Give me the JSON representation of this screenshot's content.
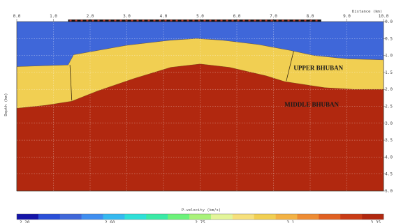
{
  "chart_data": {
    "type": "heatmap",
    "x_axis": {
      "label": "Distance (km)",
      "range": [
        0.0,
        10.0
      ],
      "ticks": [
        "0.0",
        "1.0",
        "2.0",
        "3.0",
        "4.0",
        "5.0",
        "6.0",
        "7.0",
        "8.0",
        "9.0",
        "10.0"
      ]
    },
    "y_axis": {
      "label": "Depth (km)",
      "range": [
        0.0,
        5.0
      ],
      "inverted": true,
      "ticks": [
        "0.0",
        "0.5",
        "1.0",
        "1.5",
        "2.0",
        "2.5",
        "3.0",
        "3.5",
        "4.0",
        "4.5",
        "5.0"
      ]
    },
    "grid": true,
    "layers": [
      {
        "color": "#3f67d9",
        "top_boundary": null
      },
      {
        "color": "#f1cf52",
        "top_boundary": [
          [
            0,
            1.33
          ],
          [
            1.4,
            1.28
          ],
          [
            1.55,
            0.98
          ],
          [
            3.0,
            0.7
          ],
          [
            4.2,
            0.55
          ],
          [
            4.9,
            0.5
          ],
          [
            5.6,
            0.55
          ],
          [
            6.6,
            0.68
          ],
          [
            7.2,
            0.8
          ],
          [
            7.45,
            0.85
          ],
          [
            8.1,
            1.0
          ],
          [
            9.0,
            1.1
          ],
          [
            10.0,
            1.13
          ]
        ]
      },
      {
        "color": "#b1280f",
        "top_boundary": [
          [
            0,
            2.56
          ],
          [
            0.8,
            2.47
          ],
          [
            1.5,
            2.35
          ],
          [
            2.2,
            2.05
          ],
          [
            3.2,
            1.68
          ],
          [
            4.2,
            1.35
          ],
          [
            5.0,
            1.25
          ],
          [
            5.8,
            1.35
          ],
          [
            6.8,
            1.6
          ],
          [
            7.3,
            1.77
          ],
          [
            8.4,
            1.95
          ],
          [
            9.2,
            2.0
          ],
          [
            10.0,
            2.0
          ]
        ]
      }
    ],
    "faults": [
      [
        [
          1.45,
          1.28
        ],
        [
          1.5,
          2.33
        ]
      ],
      [
        [
          7.35,
          1.75
        ],
        [
          7.55,
          0.87
        ]
      ]
    ],
    "annotations": [
      {
        "text": "UPPER BHUBAN",
        "x": 7.55,
        "y": 1.37
      },
      {
        "text": "MIDDLE BHUBAN",
        "x": 7.3,
        "y": 2.45
      }
    ],
    "colorbar": {
      "label": "P-velocity (km/s)",
      "range_text": [
        "2.20",
        "2.60",
        "2.75",
        "3.1",
        "3.35"
      ],
      "colors": [
        "#1515a8",
        "#2a4fd8",
        "#3f67d9",
        "#3f8ef0",
        "#35b9f0",
        "#2ee0d8",
        "#3aeaa6",
        "#6cf27a",
        "#a9f27a",
        "#e3f59a",
        "#f6e07c",
        "#f1cf52",
        "#f3b244",
        "#ee8c33",
        "#e06022",
        "#c93c16",
        "#b1280f"
      ]
    },
    "top_markers_x_range": [
      1.4,
      8.3
    ]
  }
}
